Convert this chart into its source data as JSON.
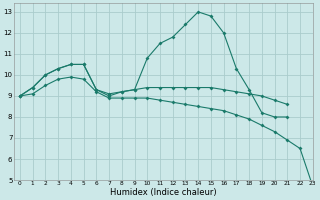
{
  "xlabel": "Humidex (Indice chaleur)",
  "bg_color": "#cce8e8",
  "grid_color": "#aacccc",
  "line_color": "#1a7a6a",
  "xlim": [
    -0.5,
    23
  ],
  "ylim": [
    5,
    13.4
  ],
  "yticks": [
    5,
    6,
    7,
    8,
    9,
    10,
    11,
    12,
    13
  ],
  "xticks": [
    0,
    1,
    2,
    3,
    4,
    5,
    6,
    7,
    8,
    9,
    10,
    11,
    12,
    13,
    14,
    15,
    16,
    17,
    18,
    19,
    20,
    21,
    22,
    23
  ],
  "lines": [
    {
      "x": [
        0,
        1,
        2,
        3,
        4,
        5,
        6,
        7,
        8,
        9,
        10,
        11,
        12,
        13,
        14,
        15,
        16,
        17,
        18,
        19,
        20,
        21
      ],
      "y": [
        9.0,
        9.4,
        10.0,
        10.3,
        10.5,
        10.5,
        9.3,
        9.0,
        9.2,
        9.3,
        10.8,
        11.5,
        11.8,
        12.4,
        13.0,
        12.8,
        12.0,
        10.3,
        9.3,
        8.2,
        8.0,
        8.0
      ]
    },
    {
      "x": [
        0,
        1,
        2,
        3,
        4,
        5,
        6,
        7,
        8,
        9,
        10,
        11,
        12,
        13,
        14,
        15,
        16,
        17,
        18,
        19,
        20,
        21
      ],
      "y": [
        9.0,
        9.4,
        10.0,
        10.3,
        10.5,
        10.5,
        9.3,
        9.1,
        9.2,
        9.3,
        9.4,
        9.4,
        9.4,
        9.4,
        9.4,
        9.4,
        9.3,
        9.2,
        9.1,
        9.0,
        8.8,
        8.6
      ]
    },
    {
      "x": [
        0,
        1,
        2,
        3,
        4,
        5,
        6,
        7,
        8,
        9,
        10,
        11,
        12,
        13,
        14,
        15,
        16,
        17,
        18,
        19,
        20,
        21,
        22,
        23
      ],
      "y": [
        9.0,
        9.1,
        9.5,
        9.8,
        9.9,
        9.8,
        9.2,
        8.9,
        8.9,
        8.9,
        8.9,
        8.8,
        8.7,
        8.6,
        8.5,
        8.4,
        8.3,
        8.1,
        7.9,
        7.6,
        7.3,
        6.9,
        6.5,
        4.7
      ]
    }
  ],
  "markersize": 2.0
}
